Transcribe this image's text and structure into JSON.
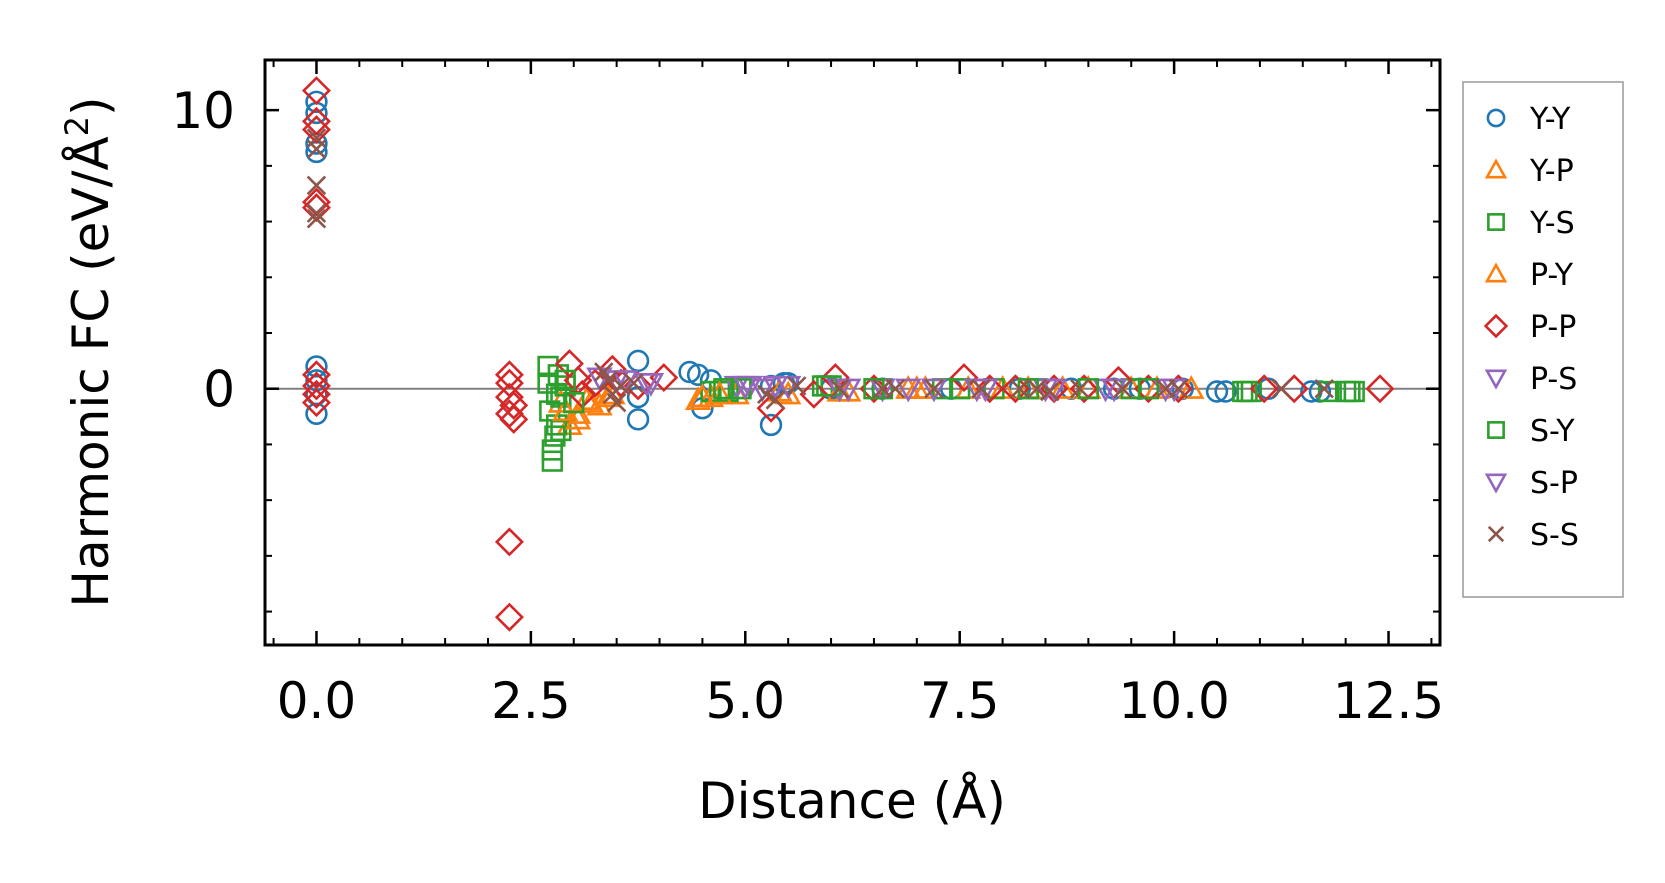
{
  "chart_data": {
    "type": "scatter",
    "xlabel": "Distance (Å)",
    "ylabel": "Harmonic FC (eV/Å",
    "ylabel_sup": "2",
    "ylabel_close": ")",
    "xlim": [
      -0.6,
      13.1
    ],
    "ylim": [
      -9.2,
      11.8
    ],
    "x_ticks": [
      0.0,
      2.5,
      5.0,
      7.5,
      10.0,
      12.5
    ],
    "x_tick_labels": [
      "0.0",
      "2.5",
      "5.0",
      "7.5",
      "10.0",
      "12.5"
    ],
    "y_ticks": [
      0,
      10
    ],
    "y_tick_labels": [
      "0",
      "10"
    ],
    "reference_line_y": 0,
    "legend_position": "outside-right",
    "series": [
      {
        "name": "Y-Y",
        "marker": "circle",
        "color": "#1f77b4",
        "x": [
          0,
          0,
          0,
          0,
          0,
          0,
          0,
          0,
          3.75,
          3.75,
          3.75,
          4.35,
          4.45,
          4.5,
          4.6,
          5.3,
          5.3,
          5.45,
          5.5,
          6.0,
          6.6,
          7.4,
          8.2,
          8.8,
          9.3,
          9.6,
          10.1,
          10.5,
          10.6,
          11.1,
          11.6,
          11.7
        ],
        "y": [
          10.3,
          9.9,
          8.8,
          8.5,
          0.8,
          0.3,
          -0.2,
          -0.9,
          1.0,
          -0.3,
          -1.1,
          0.6,
          0.5,
          -0.7,
          0.3,
          -1.3,
          0.1,
          0.2,
          0.2,
          0.0,
          0.0,
          0.0,
          0.0,
          0.0,
          0.0,
          0.0,
          0.0,
          -0.1,
          -0.1,
          0.0,
          -0.1,
          -0.1
        ]
      },
      {
        "name": "Y-P",
        "marker": "triangle-up",
        "color": "#ff7f0e",
        "x": [
          2.85,
          2.95,
          3.05,
          3.15,
          3.3,
          3.45,
          4.45,
          4.6,
          4.9,
          5.5,
          6.2,
          6.9,
          7.1,
          8.0,
          8.7,
          9.5,
          10.2
        ],
        "y": [
          -0.5,
          -1.3,
          -0.9,
          -0.4,
          -0.6,
          -0.2,
          -0.4,
          -0.3,
          -0.2,
          -0.2,
          -0.1,
          0.0,
          0.0,
          0.0,
          0.0,
          0.0,
          0.0
        ]
      },
      {
        "name": "Y-S",
        "marker": "square",
        "color": "#2ca02c",
        "x": [
          2.7,
          2.7,
          2.72,
          2.75,
          2.75,
          2.78,
          2.8,
          2.82,
          2.85,
          2.85,
          2.9,
          4.6,
          4.7,
          4.8,
          5.9,
          6.0,
          6.6,
          7.3,
          7.9,
          8.4,
          9.5,
          10.8,
          10.9,
          11.8,
          12.0,
          12.1
        ],
        "y": [
          0.8,
          0.2,
          -0.8,
          -2.6,
          -2.2,
          -1.7,
          -1.3,
          0.5,
          -1.5,
          -0.3,
          0.1,
          -0.1,
          -0.1,
          -0.1,
          0.1,
          0.1,
          0.0,
          0.0,
          0.0,
          0.0,
          0.0,
          -0.1,
          -0.1,
          -0.1,
          -0.1,
          -0.1
        ]
      },
      {
        "name": "P-Y",
        "marker": "triangle-up",
        "color": "#ff7f0e",
        "x": [
          2.9,
          3.05,
          3.2,
          3.4,
          4.5,
          4.7,
          5.4,
          6.1,
          7.0,
          7.6,
          8.3,
          9.0,
          9.8
        ],
        "y": [
          -0.8,
          -1.1,
          -0.5,
          -0.3,
          -0.3,
          -0.2,
          -0.1,
          -0.1,
          0.0,
          0.0,
          0.0,
          0.0,
          0.0
        ]
      },
      {
        "name": "P-P",
        "marker": "diamond",
        "color": "#d62728",
        "x": [
          0,
          0,
          0,
          0,
          0,
          0,
          0,
          0,
          0,
          2.25,
          2.25,
          2.25,
          2.25,
          2.25,
          2.3,
          2.25,
          2.3,
          2.95,
          3.05,
          3.1,
          3.25,
          3.45,
          3.55,
          3.75,
          4.05,
          5.3,
          5.8,
          6.05,
          6.5,
          7.55,
          7.85,
          8.15,
          8.6,
          8.95,
          9.35,
          9.7,
          10.05,
          11.05,
          11.4,
          12.4
        ],
        "y": [
          10.7,
          9.6,
          9.3,
          6.7,
          6.5,
          0.5,
          0.1,
          -0.2,
          -0.5,
          -8.2,
          -5.5,
          0.5,
          0.2,
          -0.3,
          -0.6,
          -0.9,
          -1.1,
          0.9,
          0.3,
          -0.2,
          0.2,
          0.7,
          0.2,
          0.1,
          0.4,
          -0.7,
          -0.2,
          0.4,
          0.0,
          0.4,
          0.0,
          0.0,
          0.0,
          0.0,
          0.3,
          0.0,
          0.0,
          0.0,
          0.0,
          0.0
        ]
      },
      {
        "name": "P-S",
        "marker": "triangle-down",
        "color": "#9467bd",
        "x": [
          3.3,
          3.6,
          3.9,
          4.9,
          5.05,
          5.2,
          5.5,
          6.1,
          6.6,
          7.2,
          7.8,
          8.5,
          9.2,
          9.9
        ],
        "y": [
          0.4,
          0.3,
          0.2,
          0.1,
          0.1,
          0.0,
          0.1,
          0.0,
          0.0,
          0.0,
          0.0,
          0.0,
          0.0,
          0.0
        ]
      },
      {
        "name": "S-Y",
        "marker": "square",
        "color": "#2ca02c",
        "x": [
          2.8,
          2.9,
          3.0,
          4.75,
          4.95,
          5.95,
          6.5,
          7.5,
          8.3,
          9.0,
          9.7,
          10.85,
          12.05
        ],
        "y": [
          -0.2,
          0.3,
          -0.5,
          0.0,
          0.0,
          0.1,
          0.0,
          0.0,
          0.0,
          0.0,
          0.0,
          -0.1,
          -0.1
        ]
      },
      {
        "name": "S-P",
        "marker": "triangle-down",
        "color": "#9467bd",
        "x": [
          3.5,
          3.85,
          5.0,
          5.35,
          6.2,
          6.9,
          7.7,
          8.6,
          9.3,
          10.0
        ],
        "y": [
          0.3,
          0.2,
          0.1,
          0.1,
          0.0,
          0.0,
          0.0,
          0.0,
          0.0,
          0.0
        ]
      },
      {
        "name": "S-S",
        "marker": "x",
        "color": "#8c564b",
        "x": [
          0,
          0,
          0,
          0,
          0,
          3.35,
          3.4,
          3.45,
          3.5,
          3.55,
          3.7,
          5.25,
          5.35,
          5.6,
          6.1,
          6.6,
          6.75,
          7.2,
          7.75,
          8.2,
          8.4,
          8.55,
          8.9,
          9.4,
          9.9,
          10.05,
          11.25,
          11.75
        ],
        "y": [
          9.0,
          8.6,
          7.3,
          6.3,
          6.1,
          0.6,
          0.3,
          -0.2,
          -0.5,
          0.1,
          0.2,
          -0.2,
          -0.4,
          0.1,
          0.0,
          0.0,
          0.0,
          0.0,
          0.0,
          0.0,
          0.0,
          -0.1,
          0.0,
          0.0,
          0.0,
          0.0,
          0.0,
          0.0
        ]
      }
    ]
  }
}
